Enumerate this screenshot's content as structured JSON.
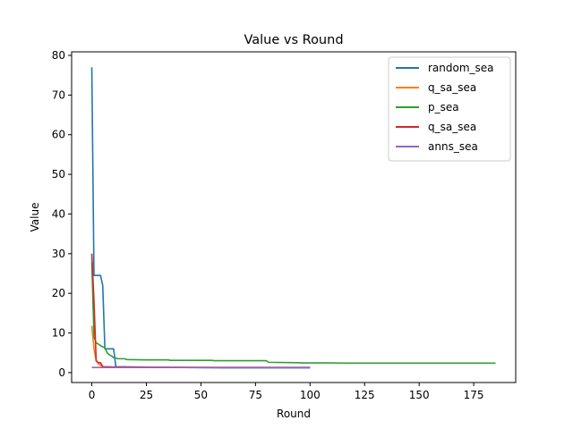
{
  "chart_data": {
    "type": "line",
    "title": "Value vs Round",
    "xlabel": "Round",
    "ylabel": "Value",
    "xlim": [
      -9.25,
      194.25
    ],
    "ylim": [
      -2.5,
      80.9
    ],
    "xticks": [
      0,
      25,
      50,
      75,
      100,
      125,
      150,
      175
    ],
    "yticks": [
      0,
      10,
      20,
      30,
      40,
      50,
      60,
      70,
      80
    ],
    "grid": false,
    "legend_position": "top-right",
    "series": [
      {
        "name": "random_sea",
        "color": "#1f77b4",
        "points": [
          [
            0,
            77
          ],
          [
            1,
            24.5
          ],
          [
            2,
            24.5
          ],
          [
            3,
            24.5
          ],
          [
            4,
            24.5
          ],
          [
            5,
            22
          ],
          [
            6,
            6
          ],
          [
            7,
            6
          ],
          [
            8,
            6
          ],
          [
            9,
            6
          ],
          [
            10,
            6
          ],
          [
            11,
            1.5
          ],
          [
            40,
            1.3
          ],
          [
            60,
            1.2
          ],
          [
            90,
            1.2
          ],
          [
            100,
            1.2
          ]
        ]
      },
      {
        "name": "q_sa_sea",
        "color": "#ff7f0e",
        "points": [
          [
            0,
            11.8
          ],
          [
            1,
            6
          ],
          [
            2,
            3
          ],
          [
            3,
            2.2
          ],
          [
            4,
            1.8
          ],
          [
            5,
            1.5
          ],
          [
            10,
            1.4
          ],
          [
            30,
            1.35
          ],
          [
            60,
            1.3
          ],
          [
            100,
            1.3
          ]
        ]
      },
      {
        "name": "p_sea",
        "color": "#2ca02c",
        "points": [
          [
            0,
            28
          ],
          [
            1,
            9
          ],
          [
            2,
            7.5
          ],
          [
            3,
            7.2
          ],
          [
            4,
            6.8
          ],
          [
            5,
            6.5
          ],
          [
            6,
            6.3
          ],
          [
            7,
            5
          ],
          [
            8,
            4.5
          ],
          [
            9,
            4.2
          ],
          [
            10,
            3.8
          ],
          [
            12,
            3.5
          ],
          [
            15,
            3.5
          ],
          [
            16,
            3.3
          ],
          [
            25,
            3.2
          ],
          [
            35,
            3.2
          ],
          [
            36,
            3.1
          ],
          [
            55,
            3.1
          ],
          [
            56,
            3
          ],
          [
            80,
            3
          ],
          [
            81,
            2.6
          ],
          [
            95,
            2.5
          ],
          [
            96,
            2.45
          ],
          [
            110,
            2.45
          ],
          [
            115,
            2.4
          ],
          [
            185,
            2.4
          ]
        ]
      },
      {
        "name": "q_sa_sea",
        "color": "#d62728",
        "points": [
          [
            0,
            30
          ],
          [
            1,
            18
          ],
          [
            2,
            3
          ],
          [
            3,
            2.5
          ],
          [
            4,
            2.5
          ],
          [
            5,
            1.5
          ],
          [
            10,
            1.4
          ],
          [
            50,
            1.3
          ],
          [
            100,
            1.3
          ]
        ]
      },
      {
        "name": "anns_sea",
        "color": "#9467bd",
        "points": [
          [
            0,
            1.3
          ],
          [
            5,
            1.3
          ],
          [
            20,
            1.3
          ],
          [
            50,
            1.3
          ],
          [
            100,
            1.3
          ]
        ]
      }
    ]
  }
}
